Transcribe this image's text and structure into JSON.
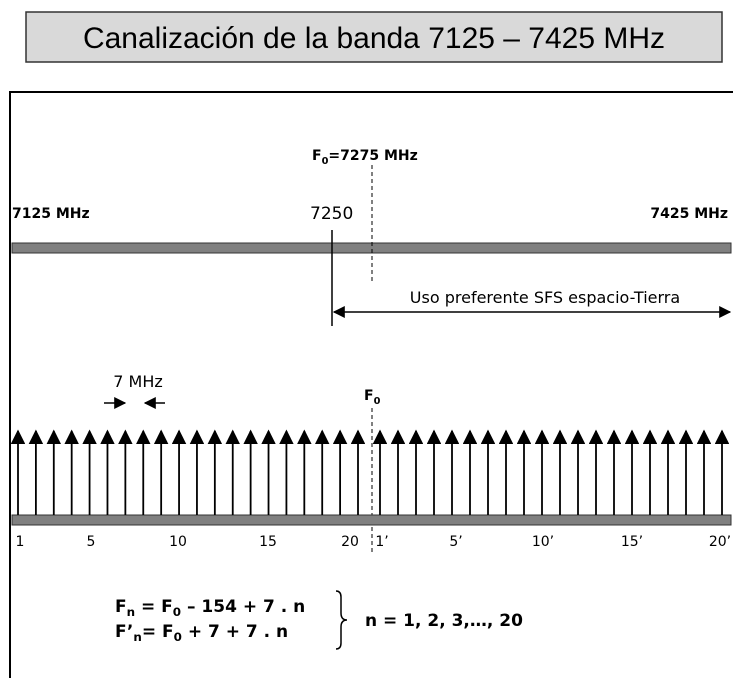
{
  "title": "Canalización de la banda 7125 – 7425 MHz",
  "band_labels": {
    "start": "7125  MHz",
    "mid": "7250",
    "end": "7425 MHz"
  },
  "f0_label": [
    {
      "text": "F"
    },
    {
      "text": "0",
      "sub": true
    },
    {
      "text": "=7275 MHz"
    }
  ],
  "range_label": "Uso preferente SFS espacio-Tierra",
  "spacing_label": "7 MHz",
  "f0_marker": [
    {
      "text": "F"
    },
    {
      "text": "0",
      "sub": true
    }
  ],
  "channel_labels": [
    "1",
    "5",
    "10",
    "15",
    "20",
    "1’",
    "5’",
    "10’",
    "15’",
    "20’"
  ],
  "formulas": [
    [
      {
        "text": "F"
      },
      {
        "text": "n",
        "sub": true
      },
      {
        "text": " = F"
      },
      {
        "text": "0",
        "sub": true
      },
      {
        "text": " – 154 + 7 . n"
      }
    ],
    [
      {
        "text": "F’"
      },
      {
        "text": "n",
        "sub": true
      },
      {
        "text": "= F"
      },
      {
        "text": "0",
        "sub": true
      },
      {
        "text": " + 7 + 7 . n"
      }
    ]
  ],
  "n_range": "n = 1, 2, 3,…, 20"
}
